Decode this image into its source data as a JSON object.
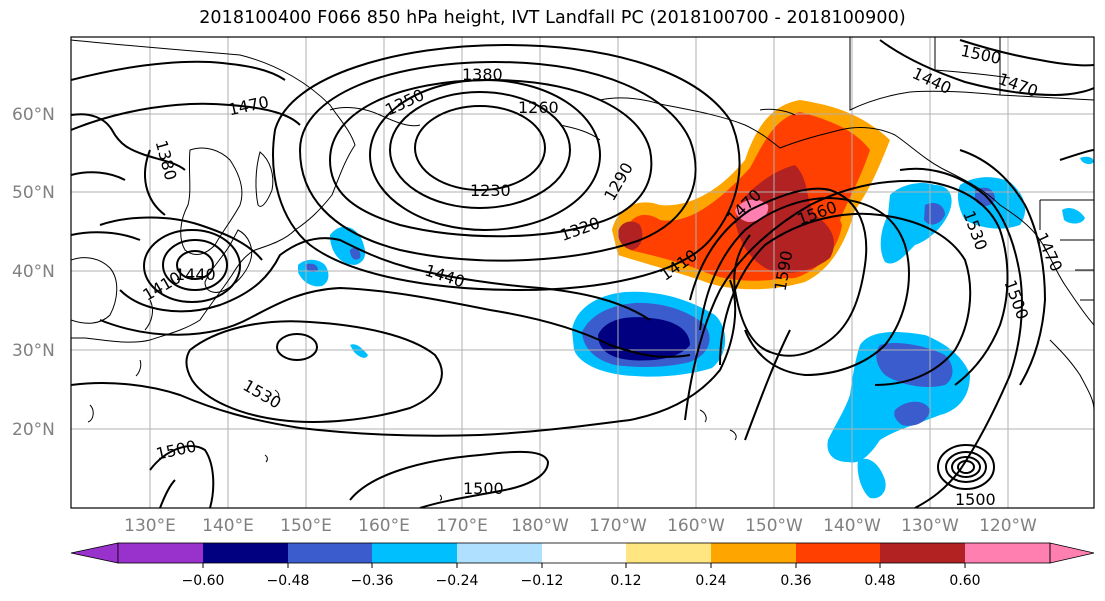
{
  "title": "2018100400 F066 850 hPa height, IVT Landfall PC (2018100700 - 2018100900)",
  "map": {
    "lon_labels": [
      "130°E",
      "140°E",
      "150°E",
      "160°E",
      "170°E",
      "180°W",
      "170°W",
      "160°W",
      "150°W",
      "140°W",
      "130°W",
      "120°W"
    ],
    "lat_labels": [
      "60°N",
      "50°N",
      "40°N",
      "30°N",
      "20°N"
    ],
    "contour_labels": [
      "1380",
      "1350",
      "1260",
      "1230",
      "1290",
      "1320",
      "1470",
      "1380",
      "1410",
      "1440",
      "1440",
      "1470",
      "1410",
      "1560",
      "1590",
      "1530",
      "1500",
      "1500",
      "1500",
      "1440",
      "1470",
      "1530",
      "1470",
      "1500",
      "1500"
    ]
  },
  "colorbar": {
    "ticks": [
      "−0.60",
      "−0.48",
      "−0.36",
      "−0.24",
      "−0.12",
      "0.12",
      "0.24",
      "0.36",
      "0.48",
      "0.60"
    ],
    "colors": [
      "#9932cc",
      "#000080",
      "#3a5ccc",
      "#00bfff",
      "#b0e0ff",
      "#ffffff",
      "#ffe680",
      "#ffa500",
      "#ff4000",
      "#b22222",
      "#ff80b0"
    ]
  },
  "colors": {
    "land_outline": "#000000",
    "grid": "#b0b0b0",
    "contour": "#000000"
  }
}
